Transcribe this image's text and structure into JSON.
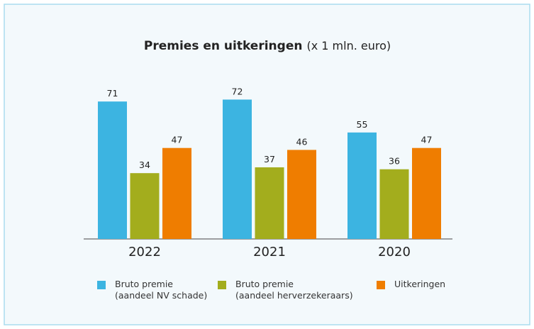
{
  "chart_data": {
    "type": "bar",
    "title": "Premies en uitkeringen",
    "subtitle": "(x 1 mln. euro)",
    "categories": [
      "2022",
      "2021",
      "2020"
    ],
    "series": [
      {
        "name": "Bruto premie\n(aandeel NV schade)",
        "color": "#3cb4e1",
        "values": [
          71,
          72,
          55
        ]
      },
      {
        "name": "Bruto premie\n(aandeel herverzekeraars)",
        "color": "#a3ad1d",
        "values": [
          34,
          37,
          36
        ]
      },
      {
        "name": "Uitkeringen",
        "color": "#ef7d00",
        "values": [
          47,
          46,
          47
        ]
      }
    ]
  }
}
